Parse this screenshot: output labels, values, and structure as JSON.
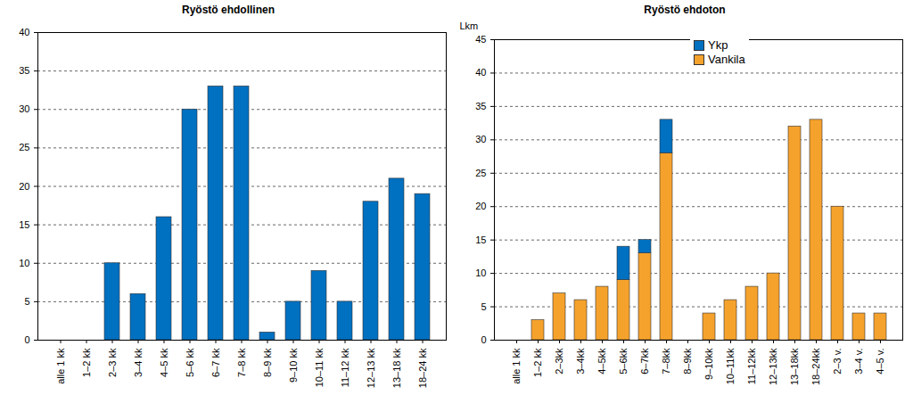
{
  "chart_data": [
    {
      "type": "bar",
      "title": "Ryöstö ehdollinen",
      "categories": [
        "alle 1 kk",
        "1–2 kk",
        "2–3 kk",
        "3–4 kk",
        "4–5 kk",
        "5–6 kk",
        "6–7 kk",
        "7–8 kk",
        "8–9 kk",
        "9–10 kk",
        "10–11 kk",
        "11–12 kk",
        "12–13 kk",
        "13–18 kk",
        "18–24 kk"
      ],
      "values": [
        0,
        0,
        10,
        6,
        16,
        30,
        33,
        33,
        1,
        5,
        9,
        5,
        18,
        21,
        19
      ],
      "color": "#0070c0",
      "ylim": [
        0,
        40
      ],
      "yticks": [
        0,
        5,
        10,
        15,
        20,
        25,
        30,
        35,
        40
      ],
      "grid": true
    },
    {
      "type": "bar",
      "title": "Ryöstö ehdoton",
      "ylabel": "Lkm",
      "categories": [
        "alle 1 kk",
        "1–2 kk",
        "2–3kk",
        "3–4kk",
        "4–5kk",
        "5–6kk",
        "6–7kk",
        "7–8kk",
        "8–9kk",
        "9–10kk",
        "10–11kk",
        "11–12kk",
        "12–13kk",
        "13–18kk",
        "18–24kk",
        "2–3 v.",
        "3–4 v.",
        "4–5 v."
      ],
      "series": [
        {
          "name": "Ykp",
          "color": "#0070c0",
          "values": [
            0,
            0,
            0,
            0,
            0,
            5,
            2,
            5,
            0,
            0,
            0,
            0,
            0,
            0,
            0,
            0,
            0,
            0
          ]
        },
        {
          "name": "Vankila",
          "color": "#f5a22d",
          "values": [
            0,
            3,
            7,
            6,
            8,
            9,
            13,
            28,
            0,
            4,
            6,
            8,
            10,
            32,
            33,
            20,
            4,
            4
          ]
        }
      ],
      "stacked": true,
      "legend": "top",
      "ylim": [
        0,
        45
      ],
      "yticks": [
        0,
        5,
        10,
        15,
        20,
        25,
        30,
        35,
        40,
        45
      ],
      "grid": true
    }
  ]
}
